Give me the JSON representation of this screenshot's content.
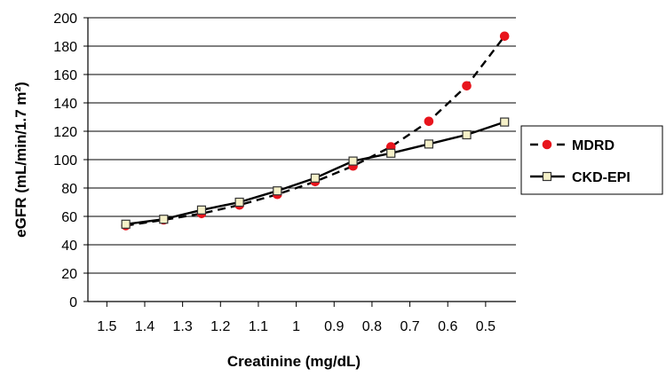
{
  "chart_data": {
    "type": "line",
    "x": [
      "1.5",
      "1.4",
      "1.3",
      "1.2",
      "1.1",
      "1",
      "0.9",
      "0.8",
      "0.7",
      "0.6",
      "0.5"
    ],
    "xlabel": "Creatinine (mg/dL)",
    "ylabel": "eGFR (mL/min/1.7 m²)",
    "ylim": [
      0,
      200
    ],
    "yticks": [
      0,
      20,
      40,
      60,
      80,
      100,
      120,
      140,
      160,
      180,
      200
    ],
    "grid": true,
    "legend_position": "right",
    "series": [
      {
        "name": "MDRD",
        "x": [
          1.45,
          1.35,
          1.25,
          1.15,
          1.05,
          0.95,
          0.85,
          0.75,
          0.65,
          0.55,
          0.45
        ],
        "values": [
          53.5,
          57.5,
          62,
          68,
          75.5,
          84.5,
          95.5,
          109,
          127,
          152,
          187
        ],
        "color": "#e8141c",
        "line_style": "dashed",
        "marker": "circle"
      },
      {
        "name": "CKD-EPI",
        "x": [
          1.45,
          1.35,
          1.25,
          1.15,
          1.05,
          0.95,
          0.85,
          0.75,
          0.65,
          0.55,
          0.45
        ],
        "values": [
          54.5,
          58,
          64.5,
          70,
          78,
          87,
          99,
          104.5,
          111,
          117.5,
          126.5
        ],
        "color": "#000000",
        "line_style": "solid",
        "marker": "square"
      }
    ]
  }
}
